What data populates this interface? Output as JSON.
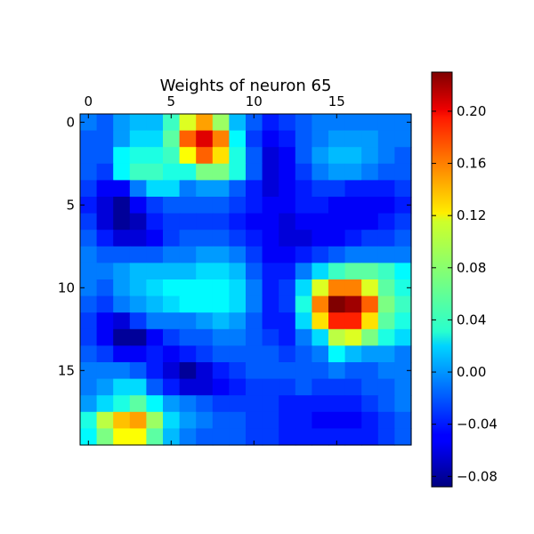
{
  "chart_data": {
    "type": "heatmap",
    "title": "Weights of neuron 65",
    "xlabel": "",
    "ylabel": "",
    "rows": 20,
    "cols": 20,
    "x_ticks": [
      0,
      5,
      10,
      15
    ],
    "y_ticks": [
      0,
      5,
      10,
      15
    ],
    "x_axis_position": "top",
    "colormap": "jet",
    "vmin": -0.088,
    "vmax": 0.23,
    "colorbar_ticks": [
      0.2,
      0.16,
      0.12,
      0.08,
      0.04,
      0.0,
      -0.04,
      -0.08
    ],
    "colorbar_tick_labels": [
      "0.20",
      "0.16",
      "0.12",
      "0.08",
      "0.04",
      "0.00",
      "−0.04",
      "−0.08"
    ],
    "grid": false,
    "values": [
      [
        -0.01,
        -0.02,
        0.0,
        0.01,
        0.01,
        0.05,
        0.1,
        0.14,
        0.08,
        0.01,
        -0.02,
        -0.04,
        -0.03,
        -0.02,
        -0.01,
        -0.01,
        -0.01,
        -0.01,
        -0.01,
        -0.01
      ],
      [
        -0.02,
        -0.02,
        0.0,
        0.02,
        0.02,
        0.06,
        0.16,
        0.2,
        0.15,
        0.03,
        -0.03,
        -0.05,
        -0.04,
        -0.02,
        -0.01,
        0.0,
        0.0,
        0.0,
        -0.01,
        -0.01
      ],
      [
        -0.02,
        -0.02,
        0.03,
        0.04,
        0.04,
        0.05,
        0.11,
        0.16,
        0.12,
        0.04,
        -0.02,
        -0.06,
        -0.05,
        -0.02,
        0.0,
        0.01,
        0.01,
        0.0,
        -0.01,
        -0.02
      ],
      [
        -0.02,
        -0.03,
        0.03,
        0.05,
        0.05,
        0.04,
        0.04,
        0.07,
        0.07,
        0.04,
        -0.02,
        -0.06,
        -0.05,
        -0.03,
        -0.01,
        0.0,
        0.0,
        -0.01,
        -0.02,
        -0.02
      ],
      [
        -0.03,
        -0.05,
        -0.05,
        -0.01,
        0.02,
        0.02,
        -0.01,
        0.0,
        0.0,
        -0.02,
        -0.04,
        -0.06,
        -0.05,
        -0.04,
        -0.03,
        -0.03,
        -0.04,
        -0.04,
        -0.04,
        -0.03
      ],
      [
        -0.04,
        -0.06,
        -0.08,
        -0.05,
        -0.03,
        -0.02,
        -0.02,
        -0.02,
        -0.02,
        -0.03,
        -0.04,
        -0.05,
        -0.05,
        -0.04,
        -0.04,
        -0.05,
        -0.05,
        -0.05,
        -0.05,
        -0.04
      ],
      [
        -0.03,
        -0.06,
        -0.08,
        -0.07,
        -0.04,
        -0.03,
        -0.03,
        -0.03,
        -0.03,
        -0.04,
        -0.05,
        -0.05,
        -0.06,
        -0.05,
        -0.05,
        -0.05,
        -0.05,
        -0.05,
        -0.04,
        -0.03
      ],
      [
        -0.02,
        -0.04,
        -0.06,
        -0.06,
        -0.05,
        -0.03,
        -0.02,
        -0.02,
        -0.02,
        -0.03,
        -0.04,
        -0.05,
        -0.06,
        -0.06,
        -0.05,
        -0.05,
        -0.04,
        -0.03,
        -0.03,
        -0.02
      ],
      [
        -0.01,
        -0.02,
        -0.02,
        -0.02,
        -0.02,
        -0.01,
        -0.01,
        0.0,
        0.0,
        -0.01,
        -0.03,
        -0.05,
        -0.05,
        -0.04,
        -0.03,
        -0.02,
        -0.01,
        -0.01,
        -0.01,
        -0.01
      ],
      [
        -0.01,
        -0.01,
        0.0,
        0.01,
        0.01,
        0.01,
        0.01,
        0.02,
        0.02,
        0.01,
        -0.02,
        -0.04,
        -0.04,
        -0.01,
        0.02,
        0.05,
        0.06,
        0.06,
        0.05,
        0.03
      ],
      [
        -0.01,
        -0.02,
        0.0,
        0.01,
        0.02,
        0.03,
        0.03,
        0.03,
        0.03,
        0.02,
        -0.01,
        -0.04,
        -0.03,
        0.02,
        0.1,
        0.15,
        0.15,
        0.1,
        0.06,
        0.04
      ],
      [
        -0.02,
        -0.03,
        -0.01,
        0.0,
        0.01,
        0.02,
        0.03,
        0.03,
        0.03,
        0.02,
        -0.01,
        -0.04,
        -0.03,
        0.04,
        0.15,
        0.23,
        0.22,
        0.16,
        0.07,
        0.05
      ],
      [
        -0.03,
        -0.05,
        -0.06,
        -0.03,
        -0.01,
        -0.01,
        -0.01,
        0.0,
        0.01,
        0.0,
        -0.02,
        -0.04,
        -0.04,
        0.02,
        0.12,
        0.18,
        0.18,
        0.12,
        0.06,
        0.04
      ],
      [
        -0.03,
        -0.05,
        -0.08,
        -0.08,
        -0.05,
        -0.03,
        -0.02,
        -0.02,
        -0.01,
        -0.01,
        -0.02,
        -0.03,
        -0.04,
        -0.01,
        0.02,
        0.09,
        0.1,
        0.07,
        0.04,
        0.02
      ],
      [
        -0.02,
        -0.03,
        -0.05,
        -0.05,
        -0.04,
        -0.05,
        -0.04,
        -0.03,
        -0.02,
        -0.02,
        -0.02,
        -0.02,
        -0.03,
        -0.02,
        -0.01,
        0.03,
        0.01,
        0.0,
        0.0,
        -0.01
      ],
      [
        -0.01,
        -0.01,
        -0.01,
        -0.02,
        -0.04,
        -0.06,
        -0.08,
        -0.06,
        -0.04,
        -0.03,
        -0.02,
        -0.02,
        -0.02,
        -0.02,
        -0.02,
        -0.01,
        -0.02,
        -0.02,
        -0.01,
        -0.01
      ],
      [
        -0.01,
        0.0,
        0.02,
        0.02,
        -0.02,
        -0.04,
        -0.06,
        -0.06,
        -0.05,
        -0.04,
        -0.03,
        -0.03,
        -0.03,
        -0.02,
        -0.03,
        -0.03,
        -0.03,
        -0.02,
        -0.02,
        -0.01
      ],
      [
        0.0,
        0.02,
        0.04,
        0.06,
        0.03,
        0.0,
        -0.01,
        -0.02,
        -0.03,
        -0.03,
        -0.03,
        -0.03,
        -0.04,
        -0.04,
        -0.04,
        -0.04,
        -0.04,
        -0.03,
        -0.02,
        -0.01
      ],
      [
        0.04,
        0.09,
        0.13,
        0.14,
        0.08,
        0.02,
        0.0,
        -0.01,
        -0.02,
        -0.02,
        -0.03,
        -0.03,
        -0.04,
        -0.04,
        -0.05,
        -0.05,
        -0.05,
        -0.04,
        -0.03,
        -0.02
      ],
      [
        0.03,
        0.07,
        0.11,
        0.11,
        0.06,
        0.01,
        -0.01,
        -0.02,
        -0.02,
        -0.02,
        -0.03,
        -0.03,
        -0.04,
        -0.04,
        -0.04,
        -0.04,
        -0.04,
        -0.04,
        -0.03,
        -0.02
      ]
    ]
  }
}
